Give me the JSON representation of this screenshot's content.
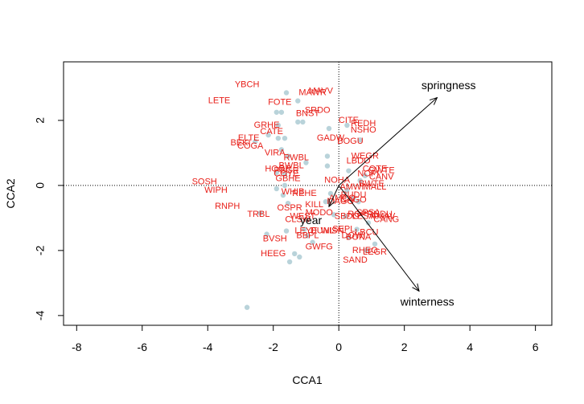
{
  "chart_data": {
    "type": "scatter",
    "title": "",
    "xlabel": "CCA1",
    "ylabel": "CCA2",
    "xlim": [
      -8.4,
      6.5
    ],
    "ylim": [
      -4.3,
      3.8
    ],
    "x_ticks": [
      -8,
      -6,
      -4,
      -2,
      0,
      2,
      4,
      6
    ],
    "y_ticks": [
      -4,
      -2,
      0,
      2
    ],
    "reference_lines": {
      "x": 0,
      "y": 0,
      "style": "dotted"
    },
    "colors": {
      "points": "#b9d3da",
      "species_labels": "#e8201a",
      "arrows": "#000000",
      "frame": "#000000"
    },
    "site_points": [
      {
        "x": -1.6,
        "y": 2.85
      },
      {
        "x": -1.25,
        "y": 2.6
      },
      {
        "x": -1.9,
        "y": 2.25
      },
      {
        "x": -1.75,
        "y": 2.25
      },
      {
        "x": -1.25,
        "y": 1.95
      },
      {
        "x": -1.1,
        "y": 1.95
      },
      {
        "x": -1.85,
        "y": 1.85
      },
      {
        "x": -0.3,
        "y": 1.75
      },
      {
        "x": 0.25,
        "y": 1.85
      },
      {
        "x": 0.65,
        "y": 1.4
      },
      {
        "x": -2.15,
        "y": 1.55
      },
      {
        "x": -1.85,
        "y": 1.45
      },
      {
        "x": -1.65,
        "y": 1.45
      },
      {
        "x": -2.55,
        "y": 1.35
      },
      {
        "x": -1.75,
        "y": 1.1
      },
      {
        "x": -1.55,
        "y": 0.9
      },
      {
        "x": -0.35,
        "y": 0.9
      },
      {
        "x": -0.35,
        "y": 0.6
      },
      {
        "x": -1.0,
        "y": 0.7
      },
      {
        "x": -1.9,
        "y": 0.4
      },
      {
        "x": -1.65,
        "y": 0.35
      },
      {
        "x": 0.3,
        "y": 0.45
      },
      {
        "x": -1.65,
        "y": 0.0
      },
      {
        "x": -1.9,
        "y": -0.1
      },
      {
        "x": -1.7,
        "y": -0.3
      },
      {
        "x": -1.55,
        "y": -0.55
      },
      {
        "x": -0.25,
        "y": -0.25
      },
      {
        "x": -0.4,
        "y": -0.5
      },
      {
        "x": -2.4,
        "y": -0.85
      },
      {
        "x": -2.2,
        "y": -1.5
      },
      {
        "x": -1.6,
        "y": -1.4
      },
      {
        "x": -1.05,
        "y": -1.35
      },
      {
        "x": -0.95,
        "y": -1.55
      },
      {
        "x": -0.8,
        "y": -1.75
      },
      {
        "x": -1.35,
        "y": -2.1
      },
      {
        "x": -1.5,
        "y": -2.35
      },
      {
        "x": -1.2,
        "y": -2.2
      },
      {
        "x": 0.3,
        "y": -1.6
      },
      {
        "x": 0.55,
        "y": -1.35
      },
      {
        "x": 0.9,
        "y": -1.15
      },
      {
        "x": 1.1,
        "y": -1.8
      },
      {
        "x": 0.85,
        "y": -2.0
      },
      {
        "x": -2.8,
        "y": -3.75
      },
      {
        "x": 0.25,
        "y": -0.15
      },
      {
        "x": 0.45,
        "y": -0.4
      },
      {
        "x": 0.6,
        "y": -0.5
      },
      {
        "x": 0.2,
        "y": -0.95
      },
      {
        "x": -0.15,
        "y": -0.9
      },
      {
        "x": 0.65,
        "y": 0.15
      },
      {
        "x": 0.8,
        "y": 0.3
      }
    ],
    "species": [
      {
        "label": "YBCH",
        "x": -2.8,
        "y": 3.1
      },
      {
        "label": "MAVV",
        "x": -0.55,
        "y": 2.9
      },
      {
        "label": "MAWR",
        "x": -0.8,
        "y": 2.85
      },
      {
        "label": "LETE",
        "x": -3.65,
        "y": 2.6
      },
      {
        "label": "FOTE",
        "x": -1.8,
        "y": 2.55
      },
      {
        "label": "SRDO",
        "x": -0.65,
        "y": 2.3
      },
      {
        "label": "BNST",
        "x": -0.95,
        "y": 2.2
      },
      {
        "label": "CITE",
        "x": 0.3,
        "y": 2.0
      },
      {
        "label": "REDH",
        "x": 0.75,
        "y": 1.9
      },
      {
        "label": "GRHE",
        "x": -2.2,
        "y": 1.85
      },
      {
        "label": "NSHO",
        "x": 0.75,
        "y": 1.7
      },
      {
        "label": "CATE",
        "x": -2.05,
        "y": 1.65
      },
      {
        "label": "GADW",
        "x": -0.25,
        "y": 1.45
      },
      {
        "label": "ELTE",
        "x": -2.75,
        "y": 1.45
      },
      {
        "label": "BOGU",
        "x": 0.35,
        "y": 1.35
      },
      {
        "label": "BEKI",
        "x": -3.0,
        "y": 1.3
      },
      {
        "label": "COGA",
        "x": -2.7,
        "y": 1.2
      },
      {
        "label": "VIRA",
        "x": -1.95,
        "y": 1.0
      },
      {
        "label": "RWBL",
        "x": -1.3,
        "y": 0.85
      },
      {
        "label": "WEGR",
        "x": 0.8,
        "y": 0.9
      },
      {
        "label": "LBDO",
        "x": 0.6,
        "y": 0.75
      },
      {
        "label": "BWBL",
        "x": -1.45,
        "y": 0.6
      },
      {
        "label": "HOGR",
        "x": -1.85,
        "y": 0.5
      },
      {
        "label": "PBGR",
        "x": -1.6,
        "y": 0.45
      },
      {
        "label": "COYE",
        "x": -1.6,
        "y": 0.35
      },
      {
        "label": "COTE",
        "x": 1.1,
        "y": 0.5
      },
      {
        "label": "GWTE",
        "x": 1.3,
        "y": 0.45
      },
      {
        "label": "NOPI",
        "x": 0.9,
        "y": 0.35
      },
      {
        "label": "CANV",
        "x": 1.3,
        "y": 0.25
      },
      {
        "label": "GBHE",
        "x": -1.55,
        "y": 0.2
      },
      {
        "label": "NOHA",
        "x": -0.05,
        "y": 0.15
      },
      {
        "label": "SOSH",
        "x": -4.1,
        "y": 0.1
      },
      {
        "label": "BWTE",
        "x": 1.0,
        "y": 0.05
      },
      {
        "label": "MALL",
        "x": 1.1,
        "y": -0.05
      },
      {
        "label": "AMWI",
        "x": 0.4,
        "y": -0.05
      },
      {
        "label": "WIPH",
        "x": -3.75,
        "y": -0.15
      },
      {
        "label": "WHIB",
        "x": -1.4,
        "y": -0.2
      },
      {
        "label": "REHE",
        "x": -1.05,
        "y": -0.25
      },
      {
        "label": "RUDU",
        "x": 0.45,
        "y": -0.3
      },
      {
        "label": "AMCO",
        "x": 0.1,
        "y": -0.4
      },
      {
        "label": "CAGO",
        "x": 0.45,
        "y": -0.45
      },
      {
        "label": "RNPH",
        "x": -3.4,
        "y": -0.65
      },
      {
        "label": "OSPR",
        "x": -1.5,
        "y": -0.7
      },
      {
        "label": "KILL",
        "x": -0.75,
        "y": -0.6
      },
      {
        "label": "MAGO",
        "x": 0.05,
        "y": -0.5
      },
      {
        "label": "TRBL",
        "x": -2.45,
        "y": -0.9
      },
      {
        "label": "MODO",
        "x": -0.6,
        "y": -0.85
      },
      {
        "label": "SBDO",
        "x": 0.25,
        "y": -0.95
      },
      {
        "label": "ROPI",
        "x": 0.6,
        "y": -0.9
      },
      {
        "label": "SPSA",
        "x": 0.9,
        "y": -0.85
      },
      {
        "label": "RNDU",
        "x": 1.25,
        "y": -0.9
      },
      {
        "label": "LESA",
        "x": 0.75,
        "y": -0.95
      },
      {
        "label": "AMAV",
        "x": 1.35,
        "y": -0.95
      },
      {
        "label": "CANG",
        "x": 1.45,
        "y": -1.05
      },
      {
        "label": "WEST",
        "x": -1.1,
        "y": -0.95
      },
      {
        "label": "CLSW",
        "x": -1.25,
        "y": -1.05
      },
      {
        "label": "LEYE",
        "x": -1.0,
        "y": -1.4
      },
      {
        "label": "DUNL",
        "x": -0.5,
        "y": -1.4
      },
      {
        "label": "WISN",
        "x": -0.2,
        "y": -1.4
      },
      {
        "label": "SEPL",
        "x": 0.15,
        "y": -1.35
      },
      {
        "label": "BBPL",
        "x": -0.95,
        "y": -1.55
      },
      {
        "label": "LBCU",
        "x": 0.85,
        "y": -1.45
      },
      {
        "label": "DOWI",
        "x": 0.45,
        "y": -1.55
      },
      {
        "label": "BONA",
        "x": 0.6,
        "y": -1.6
      },
      {
        "label": "BVSH",
        "x": -1.95,
        "y": -1.65
      },
      {
        "label": "GWFG",
        "x": -0.6,
        "y": -1.9
      },
      {
        "label": "RHEO",
        "x": 0.8,
        "y": -2.0
      },
      {
        "label": "LEGR",
        "x": 1.1,
        "y": -2.05
      },
      {
        "label": "HEEG",
        "x": -2.0,
        "y": -2.1
      },
      {
        "label": "SAND",
        "x": 0.5,
        "y": -2.3
      }
    ],
    "env_vectors": [
      {
        "label": "springness",
        "x": 3.0,
        "y": 2.7,
        "label_x": 3.35,
        "label_y": 3.05
      },
      {
        "label": "winterness",
        "x": 2.45,
        "y": -3.25,
        "label_x": 2.7,
        "label_y": -3.6
      },
      {
        "label": "year",
        "x": -0.3,
        "y": -0.65,
        "label_x": -0.85,
        "label_y": -1.1
      }
    ]
  }
}
